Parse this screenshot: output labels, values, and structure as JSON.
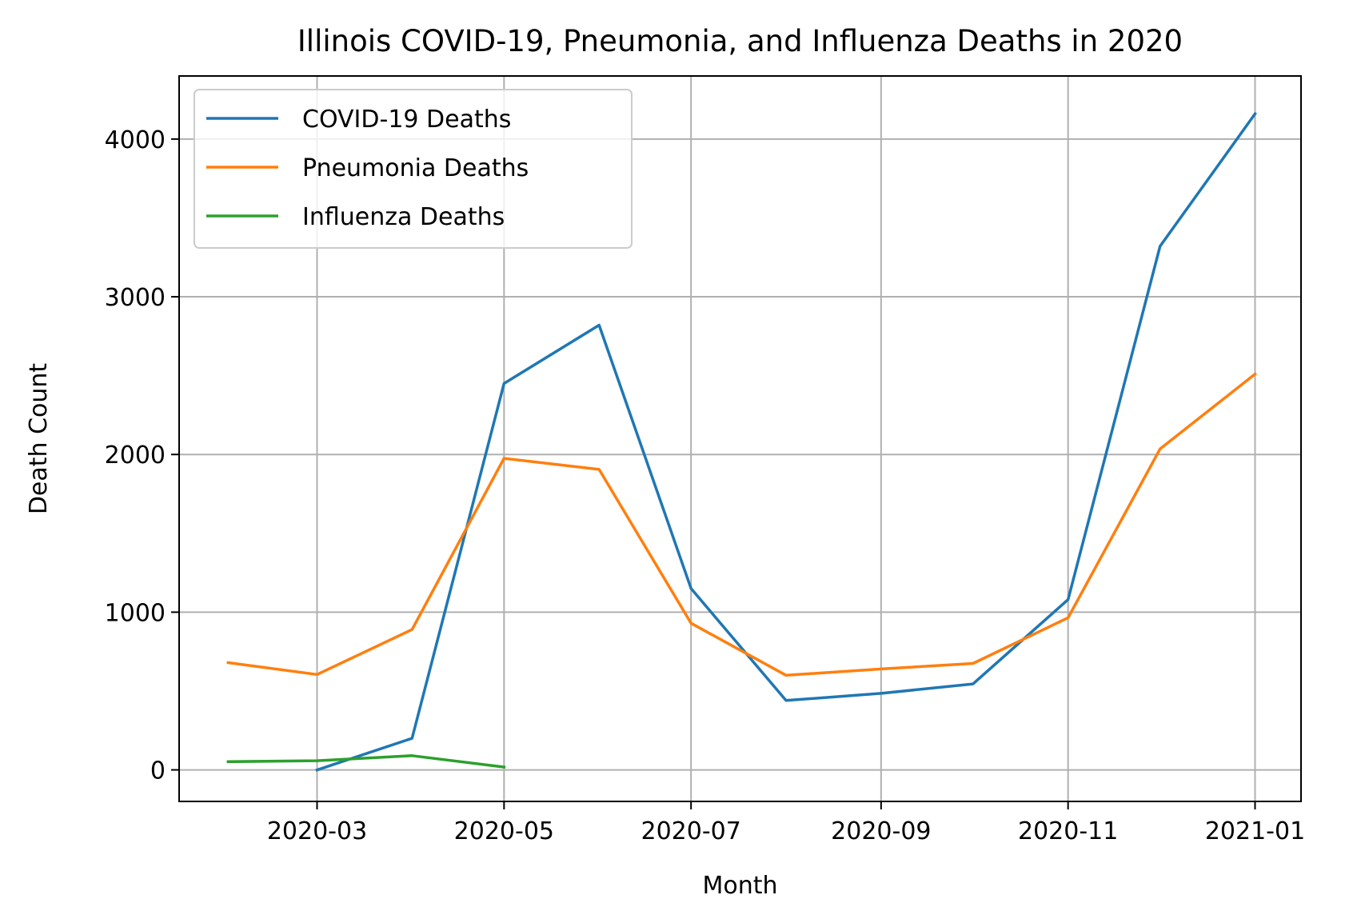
{
  "chart_data": {
    "type": "line",
    "title": "Illinois COVID-19, Pneumonia, and Influenza Deaths in 2020",
    "xlabel": "Month",
    "ylabel": "Death Count",
    "x_axis_type": "date",
    "xlim": [
      "2020-01-16",
      "2021-01-16"
    ],
    "ylim": [
      -200,
      4400
    ],
    "x_ticks": [
      "2020-03-01",
      "2020-05-01",
      "2020-07-01",
      "2020-09-01",
      "2020-11-01",
      "2021-01-01"
    ],
    "x_tick_labels": [
      "2020-03",
      "2020-05",
      "2020-07",
      "2020-09",
      "2020-11",
      "2021-01"
    ],
    "y_ticks": [
      0,
      1000,
      2000,
      3000,
      4000
    ],
    "y_tick_labels": [
      "0",
      "1000",
      "2000",
      "3000",
      "4000"
    ],
    "grid": true,
    "legend_position": "top-left",
    "series": [
      {
        "name": "COVID-19 Deaths",
        "color": "#1f77b4",
        "points": [
          {
            "x": "2020-03-01",
            "y": 0
          },
          {
            "x": "2020-04-01",
            "y": 200
          },
          {
            "x": "2020-05-01",
            "y": 2450
          },
          {
            "x": "2020-06-01",
            "y": 2820
          },
          {
            "x": "2020-07-01",
            "y": 1150
          },
          {
            "x": "2020-08-01",
            "y": 440
          },
          {
            "x": "2020-09-01",
            "y": 485
          },
          {
            "x": "2020-10-01",
            "y": 545
          },
          {
            "x": "2020-11-01",
            "y": 1080
          },
          {
            "x": "2020-12-01",
            "y": 3320
          },
          {
            "x": "2021-01-01",
            "y": 4160
          }
        ]
      },
      {
        "name": "Pneumonia Deaths",
        "color": "#ff7f0e",
        "points": [
          {
            "x": "2020-02-01",
            "y": 680
          },
          {
            "x": "2020-03-01",
            "y": 605
          },
          {
            "x": "2020-04-01",
            "y": 890
          },
          {
            "x": "2020-05-01",
            "y": 1975
          },
          {
            "x": "2020-06-01",
            "y": 1905
          },
          {
            "x": "2020-07-01",
            "y": 930
          },
          {
            "x": "2020-08-01",
            "y": 600
          },
          {
            "x": "2020-09-01",
            "y": 640
          },
          {
            "x": "2020-10-01",
            "y": 675
          },
          {
            "x": "2020-11-01",
            "y": 965
          },
          {
            "x": "2020-12-01",
            "y": 2035
          },
          {
            "x": "2021-01-01",
            "y": 2510
          }
        ]
      },
      {
        "name": "Influenza Deaths",
        "color": "#2ca02c",
        "points": [
          {
            "x": "2020-02-01",
            "y": 52
          },
          {
            "x": "2020-03-01",
            "y": 58
          },
          {
            "x": "2020-04-01",
            "y": 90
          },
          {
            "x": "2020-05-01",
            "y": 18
          }
        ]
      }
    ]
  }
}
